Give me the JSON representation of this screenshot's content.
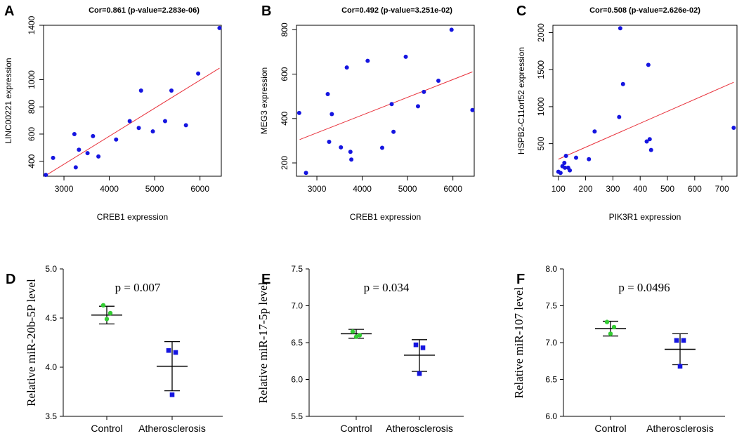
{
  "chart_data": [
    {
      "id": "A",
      "type": "scatter",
      "panel_letter": "A",
      "title": "Cor=0.861 (p-value=2.283e-06)",
      "xlabel": "CREB1  expression",
      "ylabel": "LINC00221  expression",
      "xlim": [
        2550,
        6470
      ],
      "ylim": [
        290,
        1400
      ],
      "xticks": [
        3000,
        4000,
        5000,
        6000
      ],
      "yticks": [
        400,
        600,
        800,
        1000,
        1400
      ],
      "points": [
        {
          "x": 2600,
          "y": 300
        },
        {
          "x": 2760,
          "y": 425
        },
        {
          "x": 3230,
          "y": 600
        },
        {
          "x": 3260,
          "y": 355
        },
        {
          "x": 3330,
          "y": 485
        },
        {
          "x": 3520,
          "y": 460
        },
        {
          "x": 3640,
          "y": 585
        },
        {
          "x": 3760,
          "y": 435
        },
        {
          "x": 4150,
          "y": 560
        },
        {
          "x": 4450,
          "y": 695
        },
        {
          "x": 4650,
          "y": 645
        },
        {
          "x": 4700,
          "y": 920
        },
        {
          "x": 4960,
          "y": 620
        },
        {
          "x": 5230,
          "y": 695
        },
        {
          "x": 5370,
          "y": 920
        },
        {
          "x": 5690,
          "y": 665
        },
        {
          "x": 5960,
          "y": 1045
        },
        {
          "x": 6430,
          "y": 1380
        }
      ],
      "fit_line": {
        "x": [
          2620,
          6430
        ],
        "y": [
          300,
          1085
        ]
      },
      "point_color": "#1515e0",
      "line_color": "#e8303a"
    },
    {
      "id": "B",
      "type": "scatter",
      "panel_letter": "B",
      "title": "Cor=0.492 (p-value=3.251e-02)",
      "xlabel": "CREB1  expression",
      "ylabel": "MEG3  expression",
      "xlim": [
        2550,
        6470
      ],
      "ylim": [
        140,
        820
      ],
      "xticks": [
        3000,
        4000,
        5000,
        6000
      ],
      "yticks": [
        200,
        400,
        600,
        800
      ],
      "points": [
        {
          "x": 2610,
          "y": 425
        },
        {
          "x": 2760,
          "y": 155
        },
        {
          "x": 3240,
          "y": 510
        },
        {
          "x": 3270,
          "y": 295
        },
        {
          "x": 3330,
          "y": 420
        },
        {
          "x": 3530,
          "y": 270
        },
        {
          "x": 3660,
          "y": 630
        },
        {
          "x": 3740,
          "y": 250
        },
        {
          "x": 3760,
          "y": 215
        },
        {
          "x": 4120,
          "y": 660
        },
        {
          "x": 4440,
          "y": 268
        },
        {
          "x": 4650,
          "y": 465
        },
        {
          "x": 4690,
          "y": 340
        },
        {
          "x": 4960,
          "y": 678
        },
        {
          "x": 5230,
          "y": 455
        },
        {
          "x": 5360,
          "y": 520
        },
        {
          "x": 5680,
          "y": 570
        },
        {
          "x": 5970,
          "y": 800
        },
        {
          "x": 6430,
          "y": 438
        }
      ],
      "fit_line": {
        "x": [
          2620,
          6430
        ],
        "y": [
          305,
          610
        ]
      },
      "point_color": "#1515e0",
      "line_color": "#e8303a"
    },
    {
      "id": "C",
      "type": "scatter",
      "panel_letter": "C",
      "title": "Cor=0.508 (p-value=2.626e-02)",
      "xlabel": "PIK3R1  expression",
      "ylabel": "HSPB2-C11orf52  expression",
      "xlim": [
        80,
        755
      ],
      "ylim": [
        60,
        2100
      ],
      "xticks": [
        100,
        200,
        300,
        400,
        500,
        600,
        700
      ],
      "yticks": [
        500,
        1000,
        1500,
        2000
      ],
      "points": [
        {
          "x": 100,
          "y": 120
        },
        {
          "x": 108,
          "y": 105
        },
        {
          "x": 115,
          "y": 195
        },
        {
          "x": 122,
          "y": 240
        },
        {
          "x": 124,
          "y": 175
        },
        {
          "x": 128,
          "y": 335
        },
        {
          "x": 136,
          "y": 175
        },
        {
          "x": 142,
          "y": 140
        },
        {
          "x": 165,
          "y": 310
        },
        {
          "x": 212,
          "y": 290
        },
        {
          "x": 233,
          "y": 665
        },
        {
          "x": 323,
          "y": 860
        },
        {
          "x": 327,
          "y": 2060
        },
        {
          "x": 337,
          "y": 1305
        },
        {
          "x": 424,
          "y": 530
        },
        {
          "x": 430,
          "y": 1565
        },
        {
          "x": 435,
          "y": 560
        },
        {
          "x": 440,
          "y": 415
        },
        {
          "x": 743,
          "y": 715
        }
      ],
      "fit_line": {
        "x": [
          100,
          743
        ],
        "y": [
          290,
          1330
        ]
      },
      "point_color": "#1515e0",
      "line_color": "#e8303a"
    },
    {
      "id": "D",
      "type": "dot",
      "panel_letter": "D",
      "ylabel": "Relative miR-20b-5P level",
      "annotation": "p = 0.007",
      "ylim": [
        3.5,
        5.0
      ],
      "yticks": [
        "3.5",
        "4.0",
        "4.5",
        "5.0"
      ],
      "categories": [
        "Control",
        "Atherosclerosis"
      ],
      "groups": [
        {
          "name": "Control",
          "points": [
            4.63,
            4.55,
            4.49
          ],
          "mean": 4.53,
          "upper": 4.62,
          "lower": 4.44,
          "color": "#33cc33",
          "marker": "circle"
        },
        {
          "name": "Atherosclerosis",
          "points": [
            4.17,
            4.15,
            3.72
          ],
          "mean": 4.01,
          "upper": 4.26,
          "lower": 3.76,
          "color": "#1515e0",
          "marker": "square"
        }
      ]
    },
    {
      "id": "E",
      "type": "dot",
      "panel_letter": "E",
      "ylabel": "Relative miR-17-5p level",
      "annotation": "p = 0.034",
      "ylim": [
        5.5,
        7.5
      ],
      "yticks": [
        "5.5",
        "6.0",
        "6.5",
        "7.0",
        "7.5"
      ],
      "categories": [
        "Control",
        "Atherosclerosis"
      ],
      "groups": [
        {
          "name": "Control",
          "points": [
            6.65,
            6.6,
            6.58
          ],
          "mean": 6.62,
          "upper": 6.68,
          "lower": 6.56,
          "color": "#33cc33",
          "marker": "circle"
        },
        {
          "name": "Atherosclerosis",
          "points": [
            6.47,
            6.43,
            6.08
          ],
          "mean": 6.33,
          "upper": 6.54,
          "lower": 6.11,
          "color": "#1515e0",
          "marker": "square"
        }
      ]
    },
    {
      "id": "F",
      "type": "dot",
      "panel_letter": "F",
      "ylabel": "Relative miR-107 level",
      "annotation": "p = 0.0496",
      "ylim": [
        6.0,
        8.0
      ],
      "yticks": [
        "6.0",
        "6.5",
        "7.0",
        "7.5",
        "8.0"
      ],
      "categories": [
        "Control",
        "Atherosclerosis"
      ],
      "groups": [
        {
          "name": "Control",
          "points": [
            7.28,
            7.21,
            7.12
          ],
          "mean": 7.19,
          "upper": 7.29,
          "lower": 7.09,
          "color": "#33cc33",
          "marker": "circle"
        },
        {
          "name": "Atherosclerosis",
          "points": [
            7.03,
            7.03,
            6.68
          ],
          "mean": 6.91,
          "upper": 7.12,
          "lower": 6.7,
          "color": "#1515e0",
          "marker": "square"
        }
      ]
    }
  ]
}
